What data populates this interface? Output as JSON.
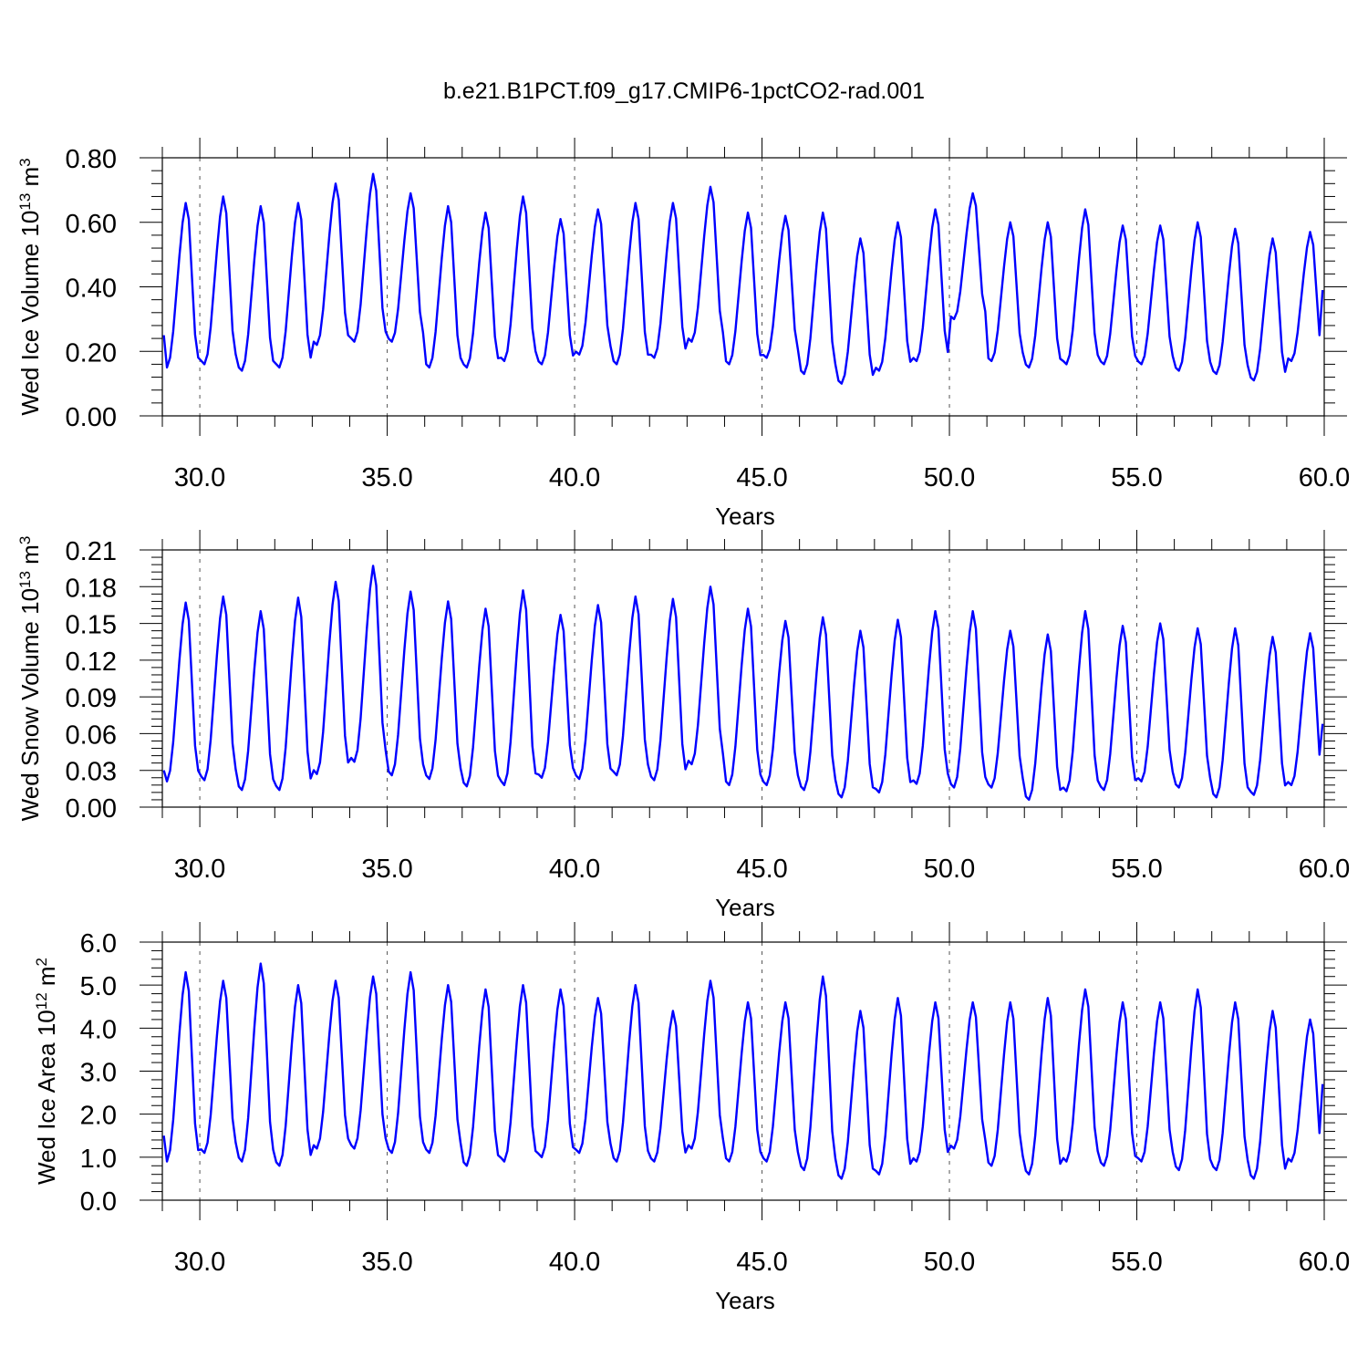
{
  "title": "b.e21.B1PCT.f09_g17.CMIP6-1pctCO2-rad.001",
  "chart_data": [
    {
      "type": "line",
      "ylabel": "Wed Ice Volume 10",
      "ylabel_exp": "13",
      "ylabel_unit": " m",
      "ylabel_unit_exp": "3",
      "xlabel": "Years",
      "xlim": [
        29.0,
        60.0
      ],
      "ylim": [
        0.0,
        0.8
      ],
      "yticks": [
        0.0,
        0.2,
        0.4,
        0.6,
        0.8
      ],
      "ytick_labels": [
        "0.00",
        "0.20",
        "0.40",
        "0.60",
        "0.80"
      ],
      "xticks": [
        30,
        35,
        40,
        45,
        50,
        55,
        60
      ],
      "xtick_labels": [
        "30.0",
        "35.0",
        "40.0",
        "45.0",
        "50.0",
        "55.0",
        "60.0"
      ],
      "grid": "dashed vertical at major x ticks",
      "line_color": "#0000ff",
      "series": [
        {
          "start_year": 29.04,
          "step_years": 0.0833333,
          "mins": [
            0.15,
            0.16,
            0.14,
            0.15,
            0.22,
            0.23,
            0.23,
            0.15,
            0.15,
            0.17,
            0.16,
            0.19,
            0.16,
            0.18,
            0.23,
            0.16,
            0.18,
            0.13,
            0.1,
            0.14,
            0.17,
            0.3,
            0.17,
            0.15,
            0.16,
            0.16,
            0.16,
            0.14,
            0.13,
            0.11,
            0.17
          ],
          "maxs": [
            0.66,
            0.68,
            0.65,
            0.66,
            0.72,
            0.75,
            0.69,
            0.65,
            0.63,
            0.68,
            0.61,
            0.64,
            0.66,
            0.66,
            0.71,
            0.63,
            0.62,
            0.63,
            0.55,
            0.6,
            0.64,
            0.69,
            0.6,
            0.6,
            0.64,
            0.59,
            0.59,
            0.6,
            0.58,
            0.55,
            0.57
          ],
          "first_value": 0.25,
          "last_value": 0.39
        }
      ]
    },
    {
      "type": "line",
      "ylabel": "Wed Snow Volume 10",
      "ylabel_exp": "13",
      "ylabel_unit": " m",
      "ylabel_unit_exp": "3",
      "xlabel": "Years",
      "xlim": [
        29.0,
        60.0
      ],
      "ylim": [
        0.0,
        0.21
      ],
      "yticks": [
        0.0,
        0.03,
        0.06,
        0.09,
        0.12,
        0.15,
        0.18,
        0.21
      ],
      "ytick_labels": [
        "0.00",
        "0.03",
        "0.06",
        "0.09",
        "0.12",
        "0.15",
        "0.18",
        "0.21"
      ],
      "xticks": [
        30,
        35,
        40,
        45,
        50,
        55,
        60
      ],
      "xtick_labels": [
        "30.0",
        "35.0",
        "40.0",
        "45.0",
        "50.0",
        "55.0",
        "60.0"
      ],
      "grid": "dashed vertical at major x ticks",
      "line_color": "#0000ff",
      "series": [
        {
          "start_year": 29.04,
          "step_years": 0.0833333,
          "mins": [
            0.021,
            0.022,
            0.014,
            0.014,
            0.027,
            0.037,
            0.026,
            0.023,
            0.017,
            0.018,
            0.024,
            0.023,
            0.026,
            0.022,
            0.035,
            0.018,
            0.018,
            0.014,
            0.008,
            0.012,
            0.019,
            0.016,
            0.016,
            0.006,
            0.013,
            0.014,
            0.021,
            0.016,
            0.008,
            0.01,
            0.018
          ],
          "maxs": [
            0.167,
            0.172,
            0.16,
            0.171,
            0.184,
            0.197,
            0.176,
            0.168,
            0.162,
            0.177,
            0.157,
            0.165,
            0.172,
            0.17,
            0.18,
            0.162,
            0.152,
            0.155,
            0.144,
            0.153,
            0.16,
            0.16,
            0.144,
            0.141,
            0.16,
            0.148,
            0.15,
            0.146,
            0.146,
            0.139,
            0.142
          ],
          "first_value": 0.03,
          "last_value": 0.068
        }
      ]
    },
    {
      "type": "line",
      "ylabel": "Wed Ice Area 10",
      "ylabel_exp": "12",
      "ylabel_unit": " m",
      "ylabel_unit_exp": "2",
      "xlabel": "Years",
      "xlim": [
        29.0,
        60.0
      ],
      "ylim": [
        0.0,
        6.0
      ],
      "yticks": [
        0.0,
        1.0,
        2.0,
        3.0,
        4.0,
        5.0,
        6.0
      ],
      "ytick_labels": [
        "0.0",
        "1.0",
        "2.0",
        "3.0",
        "4.0",
        "5.0",
        "6.0"
      ],
      "xticks": [
        30,
        35,
        40,
        45,
        50,
        55,
        60
      ],
      "xtick_labels": [
        "30.0",
        "35.0",
        "40.0",
        "45.0",
        "50.0",
        "55.0",
        "60.0"
      ],
      "grid": "dashed vertical at major x ticks",
      "line_color": "#0000ff",
      "series": [
        {
          "start_year": 29.04,
          "step_years": 0.0833333,
          "mins": [
            0.9,
            1.1,
            0.9,
            0.8,
            1.2,
            1.2,
            1.1,
            1.1,
            0.8,
            0.9,
            1.0,
            1.1,
            0.9,
            0.9,
            1.2,
            0.9,
            0.9,
            0.7,
            0.5,
            0.6,
            0.9,
            1.2,
            0.8,
            0.6,
            0.9,
            0.8,
            0.9,
            0.7,
            0.7,
            0.5,
            0.9
          ],
          "maxs": [
            5.3,
            5.1,
            5.5,
            5.0,
            5.1,
            5.2,
            5.3,
            5.0,
            4.9,
            5.0,
            4.9,
            4.7,
            5.0,
            4.4,
            5.1,
            4.6,
            4.6,
            5.2,
            4.4,
            4.7,
            4.6,
            4.6,
            4.6,
            4.7,
            4.9,
            4.6,
            4.6,
            4.9,
            4.6,
            4.4,
            4.2
          ],
          "first_value": 1.5,
          "last_value": 2.7
        }
      ]
    }
  ]
}
